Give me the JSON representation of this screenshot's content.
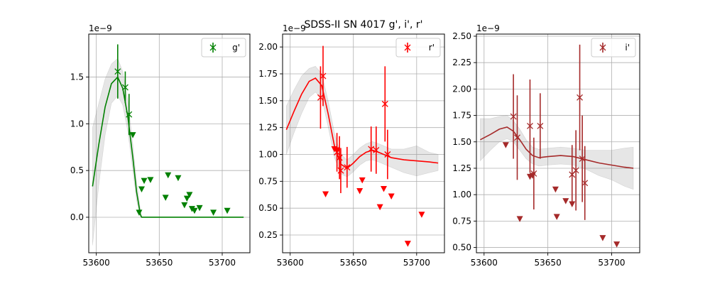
{
  "figure": {
    "title": "SDSS-II SN 4017  g', i', r'"
  },
  "chart_data": [
    {
      "type": "scatter",
      "panel": "g",
      "legend": {
        "label": "g'",
        "placement": "top-right"
      },
      "color": "#008000",
      "exponent_label": "1e−9",
      "xlim": [
        53594,
        53722
      ],
      "ylim": [
        -0.38,
        1.96
      ],
      "xticks": [
        53600,
        53650,
        53700
      ],
      "yticks": [
        0.0,
        0.5,
        1.0,
        1.5
      ],
      "ytick_labels": [
        "0.0",
        "0.5",
        "1.0",
        "1.5"
      ],
      "grid": true,
      "detections": [
        {
          "x": 53617,
          "y": 1.56,
          "err": 0.29
        },
        {
          "x": 53623,
          "y": 1.39,
          "err": 0.17
        },
        {
          "x": 53626,
          "y": 1.1,
          "err": 0.22
        }
      ],
      "upper_limits": [
        {
          "x": 53629,
          "y": 0.88
        },
        {
          "x": 53634,
          "y": 0.05
        },
        {
          "x": 53636,
          "y": 0.3
        },
        {
          "x": 53638,
          "y": 0.39
        },
        {
          "x": 53643,
          "y": 0.4
        },
        {
          "x": 53655,
          "y": 0.21
        },
        {
          "x": 53657,
          "y": 0.45
        },
        {
          "x": 53665,
          "y": 0.42
        },
        {
          "x": 53670,
          "y": 0.13
        },
        {
          "x": 53672,
          "y": 0.2
        },
        {
          "x": 53674,
          "y": 0.24
        },
        {
          "x": 53676,
          "y": 0.09
        },
        {
          "x": 53678,
          "y": 0.07
        },
        {
          "x": 53682,
          "y": 0.1
        },
        {
          "x": 53693,
          "y": 0.05
        },
        {
          "x": 53704,
          "y": 0.07
        }
      ],
      "fit": {
        "x": [
          53597,
          53602,
          53607,
          53612,
          53617,
          53621,
          53625,
          53629,
          53632,
          53635,
          53636,
          53650,
          53680,
          53717
        ],
        "y": [
          0.33,
          0.78,
          1.18,
          1.43,
          1.5,
          1.38,
          1.08,
          0.64,
          0.27,
          0.03,
          0.0,
          0.0,
          0.0,
          0.0
        ],
        "band_upper": [
          0.96,
          1.22,
          1.48,
          1.64,
          1.7,
          1.56,
          1.25,
          0.78,
          0.38,
          0.08,
          0.0,
          0.0,
          0.0,
          0.0
        ],
        "band_lower": [
          -0.3,
          0.35,
          0.88,
          1.22,
          1.3,
          1.2,
          0.92,
          0.5,
          0.18,
          0.0,
          0.0,
          0.0,
          0.0,
          0.0
        ]
      }
    },
    {
      "type": "scatter",
      "panel": "r",
      "legend": {
        "label": "r'",
        "placement": "top-right"
      },
      "color": "#ff0000",
      "exponent_label": "1e−9",
      "xlim": [
        53594,
        53722
      ],
      "ylim": [
        0.085,
        2.12
      ],
      "xticks": [
        53600,
        53650,
        53700
      ],
      "yticks": [
        0.25,
        0.5,
        0.75,
        1.0,
        1.25,
        1.5,
        1.75,
        2.0
      ],
      "ytick_labels": [
        "0.25",
        "0.50",
        "0.75",
        "1.00",
        "1.25",
        "1.50",
        "1.75",
        "2.00"
      ],
      "grid": true,
      "detections": [
        {
          "x": 53624,
          "y": 1.53,
          "err": 0.29
        },
        {
          "x": 53626,
          "y": 1.73,
          "err": 0.28
        },
        {
          "x": 53637,
          "y": 1.02,
          "err": 0.18
        },
        {
          "x": 53639,
          "y": 0.97,
          "err": 0.2
        },
        {
          "x": 53640,
          "y": 0.85,
          "err": 0.21
        },
        {
          "x": 53645,
          "y": 0.88,
          "err": 0.19
        },
        {
          "x": 53664,
          "y": 1.05,
          "err": 0.21
        },
        {
          "x": 53668,
          "y": 1.04,
          "err": 0.22
        },
        {
          "x": 53675,
          "y": 1.47,
          "err": 0.35
        },
        {
          "x": 53677,
          "y": 1.0,
          "err": 0.23
        }
      ],
      "upper_limits": [
        {
          "x": 53628,
          "y": 0.63
        },
        {
          "x": 53635,
          "y": 1.05
        },
        {
          "x": 53637,
          "y": 1.04
        },
        {
          "x": 53655,
          "y": 0.66
        },
        {
          "x": 53657,
          "y": 0.76
        },
        {
          "x": 53671,
          "y": 0.51
        },
        {
          "x": 53674,
          "y": 0.68
        },
        {
          "x": 53680,
          "y": 0.61
        },
        {
          "x": 53693,
          "y": 0.17
        },
        {
          "x": 53704,
          "y": 0.44
        }
      ],
      "fit": {
        "x": [
          53597,
          53603,
          53609,
          53615,
          53620,
          53625,
          53630,
          53635,
          53640,
          53645,
          53650,
          53655,
          53660,
          53665,
          53670,
          53680,
          53690,
          53700,
          53710,
          53717
        ],
        "y": [
          1.23,
          1.4,
          1.56,
          1.68,
          1.71,
          1.64,
          1.38,
          1.08,
          0.91,
          0.87,
          0.92,
          0.98,
          1.02,
          1.04,
          1.02,
          0.97,
          0.95,
          0.94,
          0.93,
          0.92
        ],
        "band_upper": [
          1.45,
          1.6,
          1.73,
          1.8,
          1.82,
          1.75,
          1.5,
          1.2,
          1.0,
          0.95,
          1.0,
          1.06,
          1.1,
          1.12,
          1.1,
          1.05,
          1.05,
          1.08,
          1.02,
          1.0
        ],
        "band_lower": [
          1.0,
          1.2,
          1.38,
          1.53,
          1.58,
          1.52,
          1.26,
          0.97,
          0.82,
          0.79,
          0.84,
          0.9,
          0.94,
          0.95,
          0.93,
          0.88,
          0.83,
          0.8,
          0.83,
          0.85
        ]
      }
    },
    {
      "type": "scatter",
      "panel": "i",
      "legend": {
        "label": "i'",
        "placement": "top-right"
      },
      "color": "#a52a2a",
      "exponent_label": "1e−9",
      "xlim": [
        53594,
        53722
      ],
      "ylim": [
        0.45,
        2.52
      ],
      "xticks": [
        53600,
        53650,
        53700
      ],
      "yticks": [
        0.5,
        0.75,
        1.0,
        1.25,
        1.5,
        1.75,
        2.0,
        2.25,
        2.5
      ],
      "ytick_labels": [
        "0.50",
        "0.75",
        "1.00",
        "1.25",
        "1.50",
        "1.75",
        "2.00",
        "2.25",
        "2.50"
      ],
      "grid": true,
      "detections": [
        {
          "x": 53623,
          "y": 1.74,
          "err": 0.4
        },
        {
          "x": 53626,
          "y": 1.54,
          "err": 0.4
        },
        {
          "x": 53636,
          "y": 1.65,
          "err": 0.44
        },
        {
          "x": 53639,
          "y": 1.2,
          "err": 0.34
        },
        {
          "x": 53644,
          "y": 1.65,
          "err": 0.31
        },
        {
          "x": 53669,
          "y": 1.19,
          "err": 0.28
        },
        {
          "x": 53672,
          "y": 1.23,
          "err": 0.38
        },
        {
          "x": 53675,
          "y": 1.92,
          "err": 0.5
        },
        {
          "x": 53677,
          "y": 1.34,
          "err": 0.41
        },
        {
          "x": 53679,
          "y": 1.11,
          "err": 0.35
        }
      ],
      "upper_limits": [
        {
          "x": 53617,
          "y": 1.47
        },
        {
          "x": 53628,
          "y": 0.77
        },
        {
          "x": 53636,
          "y": 1.17
        },
        {
          "x": 53638,
          "y": 1.18
        },
        {
          "x": 53656,
          "y": 1.05
        },
        {
          "x": 53657,
          "y": 0.79
        },
        {
          "x": 53664,
          "y": 0.94
        },
        {
          "x": 53669,
          "y": 0.91
        },
        {
          "x": 53693,
          "y": 0.59
        },
        {
          "x": 53704,
          "y": 0.53
        }
      ],
      "fit": {
        "x": [
          53597,
          53605,
          53612,
          53618,
          53623,
          53628,
          53633,
          53638,
          53643,
          53650,
          53660,
          53670,
          53680,
          53690,
          53700,
          53710,
          53717
        ],
        "y": [
          1.52,
          1.57,
          1.62,
          1.64,
          1.6,
          1.52,
          1.43,
          1.37,
          1.35,
          1.36,
          1.37,
          1.36,
          1.33,
          1.3,
          1.28,
          1.26,
          1.25
        ],
        "band_upper": [
          1.72,
          1.72,
          1.74,
          1.75,
          1.7,
          1.62,
          1.52,
          1.45,
          1.43,
          1.44,
          1.45,
          1.44,
          1.42,
          1.42,
          1.42,
          1.44,
          1.45
        ],
        "band_lower": [
          1.32,
          1.42,
          1.5,
          1.53,
          1.5,
          1.42,
          1.34,
          1.29,
          1.27,
          1.28,
          1.29,
          1.28,
          1.24,
          1.18,
          1.14,
          1.08,
          1.05
        ]
      }
    }
  ]
}
